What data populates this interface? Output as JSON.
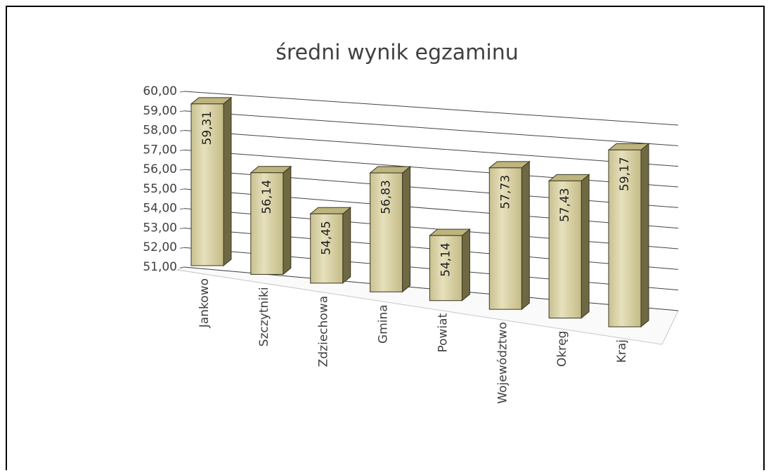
{
  "chart_data": {
    "type": "bar3d",
    "title": "średni wynik egzaminu",
    "categories": [
      "Jankowo",
      "Szczytniki",
      "Zdziechowa",
      "Gmina",
      "Powiat",
      "Województwo",
      "Okręg",
      "Kraj"
    ],
    "values": [
      59.31,
      56.14,
      54.45,
      56.83,
      54.14,
      57.73,
      57.43,
      59.17
    ],
    "value_labels": [
      "59,31",
      "56,14",
      "54,45",
      "56,83",
      "54,14",
      "57,73",
      "57,43",
      "59,17"
    ],
    "color": "#d8d1a4",
    "ylim": [
      51,
      60
    ],
    "yticks": [
      {
        "value": 51,
        "label": "51,00"
      },
      {
        "value": 52,
        "label": "52,00"
      },
      {
        "value": 53,
        "label": "53,00"
      },
      {
        "value": 54,
        "label": "54,00"
      },
      {
        "value": 55,
        "label": "55,00"
      },
      {
        "value": 56,
        "label": "56,00"
      },
      {
        "value": 57,
        "label": "57,00"
      },
      {
        "value": 58,
        "label": "58,00"
      },
      {
        "value": 59,
        "label": "59,00"
      },
      {
        "value": 60,
        "label": "60,00"
      }
    ],
    "grid": true
  }
}
